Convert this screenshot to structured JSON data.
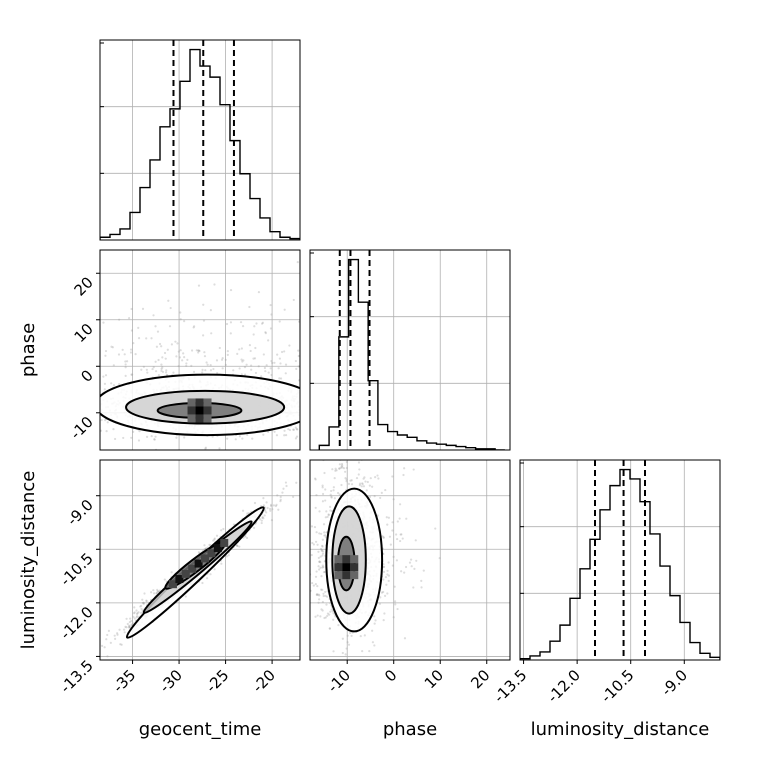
{
  "chart_data": {
    "type": "corner",
    "parameters": [
      "geocent_time",
      "phase",
      "luminosity_distance"
    ],
    "ranges": {
      "geocent_time": [
        -38.5,
        -17
      ],
      "phase": [
        -18,
        25
      ],
      "luminosity_distance": [
        -13.6,
        -8.0
      ]
    },
    "ticks": {
      "geocent_time": [
        "-35",
        "-30",
        "-25",
        "-20"
      ],
      "phase": [
        "-10",
        "0",
        "10",
        "20"
      ],
      "luminosity_distance": [
        "-13.5",
        "-12.0",
        "-10.5",
        "-9.0"
      ]
    },
    "tick_values": {
      "geocent_time": [
        -35,
        -30,
        -25,
        -20
      ],
      "phase": [
        -10,
        0,
        10,
        20
      ],
      "luminosity_distance": [
        -13.5,
        -12.0,
        -10.5,
        -9.0
      ]
    },
    "histograms": {
      "geocent_time": {
        "edges": [
          -38.5,
          -37.425,
          -36.35,
          -35.275,
          -34.2,
          -33.125,
          -32.05,
          -30.975,
          -29.9,
          -28.825,
          -27.75,
          -26.675,
          -25.6,
          -24.525,
          -23.45,
          -22.375,
          -21.3,
          -20.225,
          -19.15,
          -18.075,
          -17.0
        ],
        "counts": [
          2,
          4,
          8,
          20,
          38,
          58,
          82,
          95,
          115,
          138,
          126,
          118,
          98,
          72,
          48,
          30,
          16,
          6,
          2,
          1
        ],
        "quantiles": [
          -30.6,
          -27.4,
          -24.1
        ]
      },
      "phase": {
        "edges": [
          -16.0,
          -13.9,
          -11.8,
          -9.7,
          -7.6,
          -5.5,
          -3.4,
          -1.3,
          0.8,
          2.9,
          5.0,
          7.1,
          9.2,
          11.3,
          13.4,
          15.5,
          17.6,
          19.7,
          21.8,
          23.9
        ],
        "counts": [
          4,
          20,
          98,
          165,
          128,
          60,
          22,
          16,
          13,
          11,
          8,
          6,
          5,
          4,
          3,
          2,
          1,
          1,
          0
        ],
        "quantiles": [
          -11.6,
          -9.3,
          -5.2
        ]
      },
      "luminosity_distance": {
        "edges": [
          -13.6,
          -13.32,
          -13.04,
          -12.76,
          -12.48,
          -12.2,
          -11.92,
          -11.64,
          -11.36,
          -11.08,
          -10.8,
          -10.52,
          -10.24,
          -9.96,
          -9.68,
          -9.4,
          -9.12,
          -8.84,
          -8.56,
          -8.28,
          -8.0
        ],
        "counts": [
          1,
          3,
          6,
          14,
          26,
          46,
          68,
          90,
          112,
          130,
          142,
          135,
          118,
          94,
          70,
          48,
          28,
          13,
          5,
          2
        ],
        "quantiles": [
          -11.5,
          -10.7,
          -10.1
        ]
      }
    },
    "pair_summaries": [
      {
        "x": "geocent_time",
        "y": "phase",
        "density_peak": [
          -27.8,
          -9.5
        ],
        "contour_levels": [
          {
            "center": [
              -27.8,
              -9.5
            ],
            "half_widths": [
              4.5,
              1.6
            ],
            "rotation": 0
          },
          {
            "center": [
              -27.2,
              -8.8
            ],
            "half_widths": [
              8.5,
              3.5
            ],
            "rotation": 0
          },
          {
            "center": [
              -27.0,
              -8.3
            ],
            "half_widths": [
              12.0,
              6.5
            ],
            "rotation": 0
          }
        ]
      },
      {
        "x": "geocent_time",
        "y": "luminosity_distance",
        "density_peak": [
          -28.0,
          -11.0
        ],
        "correlation": "strong-positive",
        "contour_levels": [
          {
            "from": [
              -31.0,
              -11.5
            ],
            "to": [
              -25.5,
              -10.4
            ],
            "width": 0.25
          },
          {
            "from": [
              -33.0,
              -12.1
            ],
            "to": [
              -23.0,
              -9.9
            ],
            "width": 0.45
          },
          {
            "from": [
              -34.5,
              -12.7
            ],
            "to": [
              -22.0,
              -9.6
            ],
            "width": 0.65
          }
        ]
      },
      {
        "x": "phase",
        "y": "luminosity_distance",
        "density_peak": [
          -10.2,
          -11.0
        ],
        "contour_levels": [
          {
            "center": [
              -10.2,
              -10.9
            ],
            "half_widths": [
              1.8,
              0.75
            ],
            "rotation": 0
          },
          {
            "center": [
              -9.6,
              -10.8
            ],
            "half_widths": [
              3.6,
              1.5
            ],
            "rotation": 0
          },
          {
            "center": [
              -8.5,
              -10.8
            ],
            "half_widths": [
              6.0,
              2.0
            ],
            "rotation": 0
          }
        ]
      }
    ],
    "grid": true,
    "line_color": "#000000",
    "scatter_color": "#9e9e9e"
  }
}
